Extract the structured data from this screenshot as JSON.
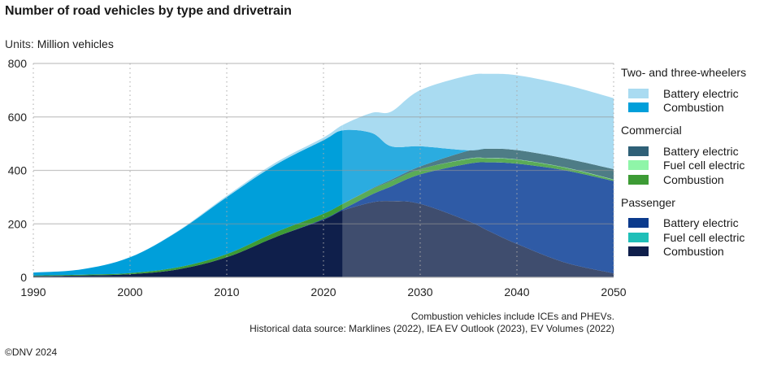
{
  "chart_data": {
    "type": "area",
    "stacked": true,
    "title": "Number of road vehicles by type and drivetrain",
    "units_label": "Units:",
    "units": "Million vehicles",
    "xlabel": "",
    "ylabel": "Million vehicles",
    "xlim": [
      1990,
      2050
    ],
    "ylim": [
      0,
      800
    ],
    "xticks": [
      1990,
      2000,
      2010,
      2020,
      2030,
      2040,
      2050
    ],
    "yticks": [
      0,
      200,
      400,
      600,
      800
    ],
    "grid": {
      "horizontal": "solid",
      "vertical": "dotted"
    },
    "forecast_start": 2022,
    "legend_position": "right",
    "x": [
      1990,
      1995,
      2000,
      2005,
      2010,
      2015,
      2020,
      2022,
      2025,
      2027,
      2030,
      2035,
      2037,
      2040,
      2045,
      2050
    ],
    "series": [
      {
        "group": "Passenger",
        "name": "Combustion",
        "color": "#0f1f4b",
        "forecast_color": "#3f4d6e",
        "values": [
          5,
          7,
          12,
          30,
          75,
          150,
          215,
          250,
          280,
          285,
          275,
          210,
          175,
          125,
          55,
          15
        ]
      },
      {
        "group": "Passenger",
        "name": "Fuel cell electric",
        "color": "#1fbfb8",
        "values": [
          0,
          0,
          0,
          0,
          0,
          0,
          0,
          0,
          0,
          0,
          0,
          0,
          0,
          0,
          0,
          0
        ]
      },
      {
        "group": "Passenger",
        "name": "Battery electric",
        "color": "#0b3a8c",
        "forecast_color": "#2f5ba6",
        "values": [
          0,
          0,
          0,
          0,
          0,
          0,
          3,
          5,
          30,
          55,
          110,
          215,
          255,
          300,
          345,
          345
        ]
      },
      {
        "group": "Commercial",
        "name": "Combustion",
        "color": "#3d9b35",
        "forecast_color": "#5aab57",
        "values": [
          2,
          3,
          4,
          8,
          12,
          18,
          20,
          20,
          20,
          20,
          20,
          18,
          15,
          15,
          10,
          5
        ]
      },
      {
        "group": "Commercial",
        "name": "Fuel cell electric",
        "color": "#8ff5a8",
        "values": [
          0,
          0,
          0,
          0,
          0,
          0,
          0,
          0,
          0,
          0,
          0,
          1,
          1,
          1,
          1,
          1
        ]
      },
      {
        "group": "Commercial",
        "name": "Battery electric",
        "color": "#2f6077",
        "forecast_color": "#4e7c86",
        "values": [
          0,
          0,
          0,
          0,
          0,
          0,
          0,
          0,
          2,
          5,
          10,
          30,
          35,
          35,
          34,
          39
        ]
      },
      {
        "group": "Two- and three-wheelers",
        "name": "Combustion",
        "color": "#009fda",
        "forecast_color": "#2bace0",
        "values": [
          11,
          20,
          59,
          135,
          213,
          252,
          275,
          275,
          208,
          125,
          75,
          1,
          0,
          0,
          0,
          0
        ]
      },
      {
        "group": "Two- and three-wheelers",
        "name": "Battery electric",
        "color": "#a9dbf1",
        "values": [
          0,
          0,
          0,
          2,
          5,
          8,
          10,
          20,
          75,
          130,
          210,
          280,
          280,
          280,
          275,
          265
        ]
      }
    ]
  },
  "legend": {
    "groups": [
      {
        "title": "Two- and three-wheelers",
        "items": [
          {
            "label": "Battery electric",
            "color": "#a9dbf1"
          },
          {
            "label": "Combustion",
            "color": "#009fda"
          }
        ]
      },
      {
        "title": "Commercial",
        "items": [
          {
            "label": "Battery electric",
            "color": "#2f6077"
          },
          {
            "label": "Fuel cell electric",
            "color": "#8ff5a8"
          },
          {
            "label": "Combustion",
            "color": "#3d9b35"
          }
        ]
      },
      {
        "title": "Passenger",
        "items": [
          {
            "label": "Battery electric",
            "color": "#0b3a8c"
          },
          {
            "label": "Fuel cell electric",
            "color": "#1fbfb8"
          },
          {
            "label": "Combustion",
            "color": "#0f1f4b"
          }
        ]
      }
    ]
  },
  "notes": {
    "line1": "Combustion vehicles include ICEs and PHEVs.",
    "line2": "Historical data source: Marklines (2022), IEA EV Outlook (2023), EV Volumes (2022)"
  },
  "copyright": "©DNV 2024"
}
